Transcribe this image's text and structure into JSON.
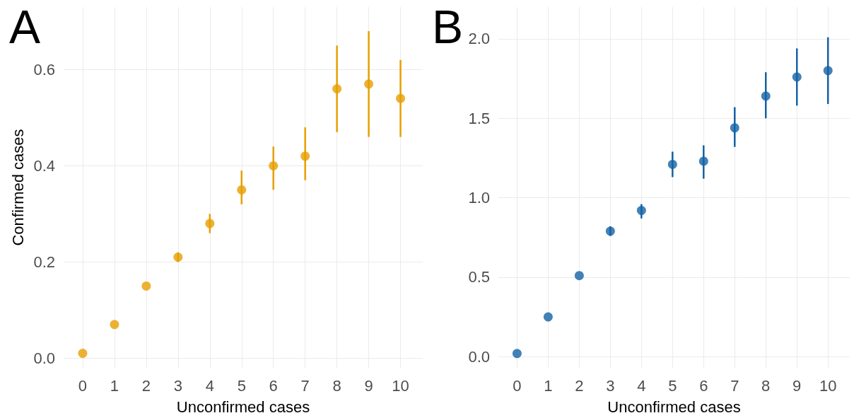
{
  "chart_data": [
    {
      "type": "scatter",
      "title": "A",
      "xlabel": "Unconfirmed cases",
      "ylabel": "Confirmed cases",
      "x": [
        0,
        1,
        2,
        3,
        4,
        5,
        6,
        7,
        8,
        9,
        10
      ],
      "series": [
        {
          "color": "#e69f00",
          "values": [
            0.01,
            0.07,
            0.15,
            0.21,
            0.28,
            0.35,
            0.4,
            0.42,
            0.56,
            0.57,
            0.54
          ],
          "errors": [
            null,
            null,
            null,
            [
              0.2,
              0.22
            ],
            [
              0.26,
              0.3
            ],
            [
              0.32,
              0.39
            ],
            [
              0.35,
              0.44
            ],
            [
              0.37,
              0.48
            ],
            [
              0.47,
              0.65
            ],
            [
              0.46,
              0.68
            ],
            [
              0.46,
              0.62
            ]
          ]
        }
      ],
      "xlim": [
        -0.6,
        10.7
      ],
      "xticks": [
        0,
        1,
        2,
        3,
        4,
        5,
        6,
        7,
        8,
        9,
        10
      ],
      "ylim": [
        -0.02,
        0.73
      ],
      "yticks": [
        {
          "value": 0,
          "label": "0.0"
        },
        0.2,
        0.4,
        0.6
      ],
      "grid": true,
      "marker": "circle"
    },
    {
      "type": "scatter",
      "title": "B",
      "xlabel": "Unconfirmed cases",
      "x": [
        0,
        1,
        2,
        3,
        4,
        5,
        6,
        7,
        8,
        9,
        10
      ],
      "series": [
        {
          "color": "#1461a5",
          "values": [
            0.02,
            0.25,
            0.51,
            0.79,
            0.92,
            1.21,
            1.23,
            1.44,
            1.64,
            1.76,
            1.8
          ],
          "errors": [
            null,
            null,
            null,
            [
              0.76,
              0.82
            ],
            [
              0.87,
              0.96
            ],
            [
              1.13,
              1.29
            ],
            [
              1.12,
              1.33
            ],
            [
              1.32,
              1.57
            ],
            [
              1.5,
              1.79
            ],
            [
              1.58,
              1.94
            ],
            [
              1.59,
              2.01
            ]
          ]
        }
      ],
      "xlim": [
        -0.6,
        10.7
      ],
      "xticks": [
        0,
        1,
        2,
        3,
        4,
        5,
        6,
        7,
        8,
        9,
        10
      ],
      "ylim": [
        -0.07,
        2.2
      ],
      "yticks": [
        {
          "value": 0,
          "label": "0.0"
        },
        {
          "value": 0.5,
          "label": "0.5"
        },
        {
          "value": 1,
          "label": "1.0"
        },
        {
          "value": 1.5,
          "label": "1.5"
        },
        {
          "value": 2,
          "label": "2.0"
        }
      ],
      "grid": true,
      "marker": "circle"
    }
  ]
}
